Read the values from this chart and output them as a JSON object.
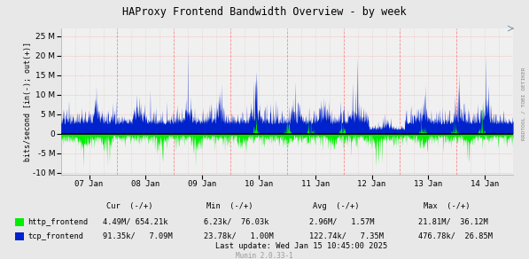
{
  "title": "HAProxy Frontend Bandwidth Overview - by week",
  "ylabel": "bits/second [in(-); out(+)]",
  "background_color": "#E8E8E8",
  "plot_bg_color": "#F0F0F0",
  "grid_major_color": "#FF8888",
  "grid_minor_color": "#DDBBBB",
  "x_labels": [
    "07 Jan",
    "08 Jan",
    "09 Jan",
    "10 Jan",
    "11 Jan",
    "12 Jan",
    "13 Jan",
    "14 Jan"
  ],
  "ylim": [
    -10500000,
    27000000
  ],
  "yticks": [
    -10000000,
    -5000000,
    0,
    5000000,
    10000000,
    15000000,
    20000000,
    25000000
  ],
  "http_color": "#00EE00",
  "tcp_color": "#0022CC",
  "last_update": "Last update: Wed Jan 15 10:45:00 2025",
  "munin_version": "Munin 2.0.33-1",
  "side_label": "RRDTOOL / TOBI OETIKER",
  "num_points": 1500,
  "legend_header": "Cur  (-/+)         Min  (-/+)        Avg  (-/+)        Max  (-/+)",
  "http_cur": "4.49M/ 654.21k",
  "http_min": "6.23k/  76.03k",
  "http_avg": "2.96M/   1.57M",
  "http_max": "21.81M/  36.12M",
  "tcp_cur": "91.35k/   7.09M",
  "tcp_min": "23.78k/   1.00M",
  "tcp_avg": "122.74k/   7.35M",
  "tcp_max": "476.78k/  26.85M"
}
